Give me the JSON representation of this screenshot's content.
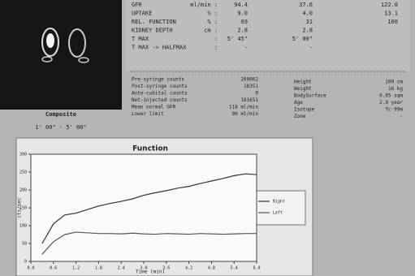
{
  "image": {
    "caption": "Composite",
    "interval": "1' 00\" - 5' 00\""
  },
  "results": {
    "rows": [
      {
        "label": "GFR",
        "unit": "ml/min :",
        "values": [
          "94.4",
          "37.6",
          "122.0"
        ]
      },
      {
        "label": "UPTAKE",
        "unit": "% :",
        "values": [
          "9.0",
          "4.0",
          "13.1"
        ]
      },
      {
        "label": "REL. FUNCTION",
        "unit": "% :",
        "values": [
          "69",
          "31",
          "100"
        ]
      },
      {
        "label": "KIDNEY DEPTH",
        "unit": "cm :",
        "values": [
          "2.8",
          "2.8"
        ]
      },
      {
        "label": "T MAX",
        "unit": ":",
        "values": [
          "5' 45\"",
          "5' 00\""
        ]
      },
      {
        "label": "T MAX -> HALFMAX",
        "unit": ":",
        "values": [
          "-",
          "-"
        ]
      }
    ]
  },
  "counts": {
    "rows": [
      {
        "label": "Pre-syringe counts",
        "value": "200002"
      },
      {
        "label": "Post-syringe counts",
        "value": "18351"
      },
      {
        "label": "Ante-cubital counts",
        "value": "0"
      },
      {
        "label": "Net-injected counts",
        "value": "181651"
      },
      {
        "label": "Mean normal GFR",
        "value": "118 ml/min"
      },
      {
        "label": "Lower limit",
        "value": "90 ml/min"
      }
    ]
  },
  "patient": {
    "rows": [
      {
        "label": "Height",
        "value": "100  cm"
      },
      {
        "label": "Weight",
        "value": "16  kg"
      },
      {
        "label": "BodySurface",
        "value": "0.65 sqm"
      },
      {
        "label": "Age",
        "value": "2.9 year"
      },
      {
        "label": "Isotope",
        "value": "Tc-99m"
      },
      {
        "label": "Zone",
        "value": "-"
      }
    ]
  },
  "chart_data": {
    "type": "line",
    "title": "Function",
    "x_label": "Time (min)",
    "y_label": "cts/sec",
    "x": [
      0.3,
      0.6,
      0.9,
      1.2,
      1.5,
      1.8,
      2.1,
      2.4,
      2.7,
      3.0,
      3.3,
      3.6,
      3.9,
      4.2,
      4.5,
      4.8,
      5.1,
      5.4,
      5.7,
      6.0
    ],
    "series": [
      {
        "name": "Right",
        "color": "#333333",
        "values": [
          50,
          105,
          130,
          135,
          145,
          155,
          162,
          168,
          175,
          185,
          192,
          198,
          205,
          210,
          218,
          225,
          232,
          240,
          245,
          243
        ]
      },
      {
        "name": "Left",
        "color": "#555555",
        "values": [
          20,
          55,
          75,
          82,
          80,
          78,
          78,
          77,
          79,
          77,
          76,
          78,
          77,
          76,
          78,
          77,
          76,
          77,
          78,
          78
        ]
      }
    ],
    "xlim": [
      0,
      6
    ],
    "ylim": [
      0,
      300
    ],
    "xticks": [
      {
        "value": 0,
        "label": "0.0"
      },
      0.6,
      1.2,
      1.8,
      2.4,
      {
        "value": 3,
        "label": "3.0"
      },
      3.6,
      4.2,
      4.8,
      5.4,
      {
        "value": 6,
        "label": "6.0"
      }
    ],
    "yticks": [
      0,
      50,
      100,
      150,
      200,
      250,
      300
    ],
    "grid": false
  }
}
